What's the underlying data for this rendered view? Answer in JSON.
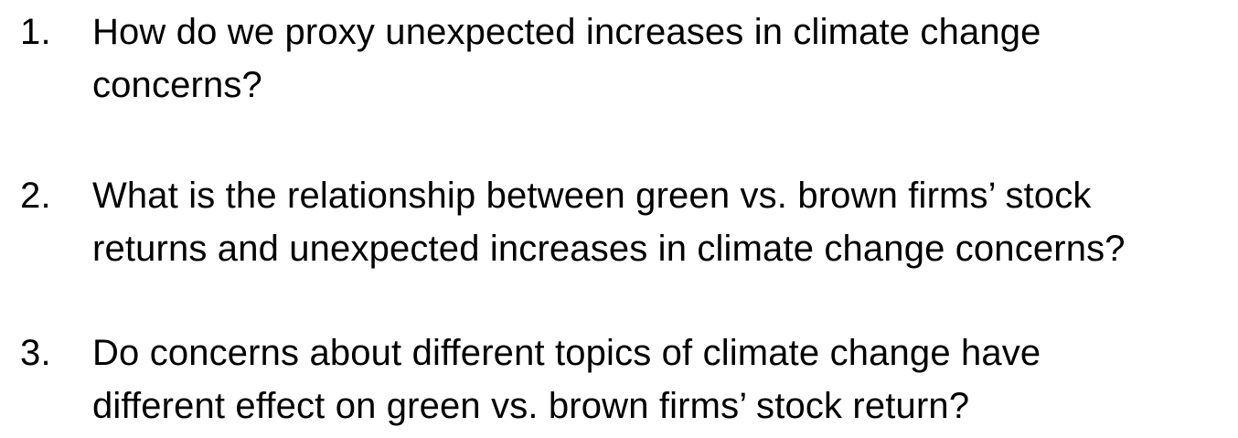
{
  "questions": [
    {
      "number": "1.",
      "line1": "How do we proxy unexpected increases in climate change",
      "line2": "concerns?"
    },
    {
      "number": "2.",
      "line1": "What is the relationship between green vs. brown firms’ stock",
      "line2": "returns and unexpected increases in climate change concerns?"
    },
    {
      "number": "3.",
      "line1": "Do concerns about different topics of climate change have",
      "line2": "different effect on green vs. brown firms’ stock return?"
    }
  ]
}
